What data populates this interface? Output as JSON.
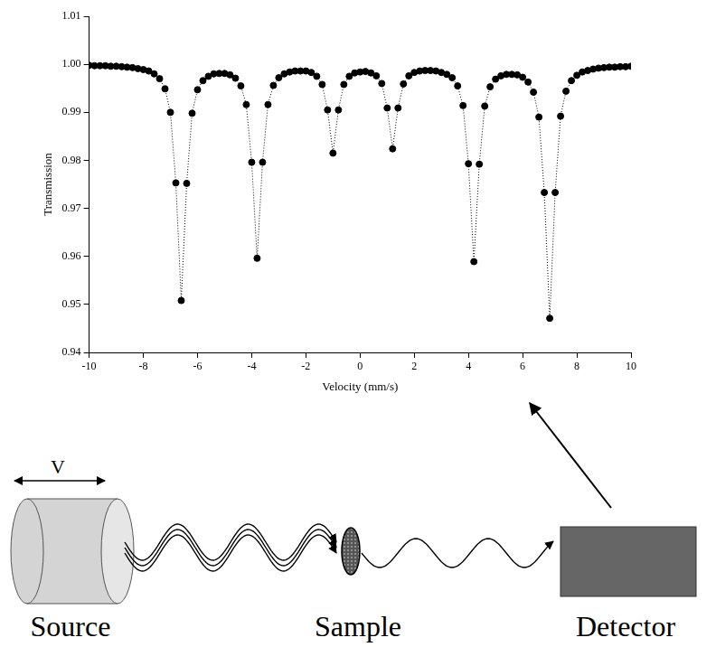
{
  "chart_data": {
    "type": "scatter",
    "xlabel": "Velocity (mm/s)",
    "ylabel": "Transmission",
    "x": [
      -10.0,
      -9.8,
      -9.6,
      -9.4,
      -9.2,
      -9.0,
      -8.8,
      -8.6,
      -8.4,
      -8.2,
      -8.0,
      -7.8,
      -7.6,
      -7.4,
      -7.2,
      -7.0,
      -6.8,
      -6.6,
      -6.4,
      -6.2,
      -6.0,
      -5.8,
      -5.6,
      -5.4,
      -5.2,
      -5.0,
      -4.8,
      -4.6,
      -4.4,
      -4.2,
      -4.0,
      -3.8,
      -3.6,
      -3.4,
      -3.2,
      -3.0,
      -2.8,
      -2.6,
      -2.4,
      -2.2,
      -2.0,
      -1.8,
      -1.6,
      -1.4,
      -1.2,
      -1.0,
      -0.8,
      -0.6,
      -0.4,
      -0.2,
      0.0,
      0.2,
      0.4,
      0.6,
      0.8,
      1.0,
      1.2,
      1.4,
      1.6,
      1.8,
      2.0,
      2.2,
      2.4,
      2.6,
      2.8,
      3.0,
      3.2,
      3.4,
      3.6,
      3.8,
      4.0,
      4.2,
      4.4,
      4.6,
      4.8,
      5.0,
      5.2,
      5.4,
      5.6,
      5.8,
      6.0,
      6.2,
      6.4,
      6.6,
      6.8,
      7.0,
      7.2,
      7.4,
      7.6,
      7.8,
      8.0,
      8.2,
      8.4,
      8.6,
      8.8,
      9.0,
      9.2,
      9.4,
      9.6,
      9.8,
      10.0
    ],
    "values": [
      0.9998,
      0.9997,
      0.9997,
      0.9997,
      0.9996,
      0.9996,
      0.9995,
      0.9994,
      0.9993,
      0.9991,
      0.9989,
      0.9986,
      0.998,
      0.997,
      0.9949,
      0.99,
      0.9753,
      0.9508,
      0.9752,
      0.9898,
      0.9947,
      0.9966,
      0.9975,
      0.998,
      0.9981,
      0.9981,
      0.9978,
      0.9971,
      0.9955,
      0.9916,
      0.9796,
      0.9596,
      0.9796,
      0.9916,
      0.9956,
      0.9972,
      0.998,
      0.9984,
      0.9986,
      0.9986,
      0.9986,
      0.9983,
      0.9975,
      0.9958,
      0.9905,
      0.9815,
      0.9905,
      0.9958,
      0.9975,
      0.9982,
      0.9984,
      0.9985,
      0.9982,
      0.9976,
      0.996,
      0.9909,
      0.9824,
      0.9909,
      0.9959,
      0.9976,
      0.9983,
      0.9986,
      0.9987,
      0.9987,
      0.9986,
      0.9983,
      0.9979,
      0.9972,
      0.9955,
      0.9914,
      0.9793,
      0.9589,
      0.9792,
      0.9913,
      0.9953,
      0.9969,
      0.9976,
      0.9979,
      0.9979,
      0.9978,
      0.9973,
      0.9963,
      0.9942,
      0.989,
      0.9733,
      0.9471,
      0.9733,
      0.9892,
      0.9944,
      0.9966,
      0.9977,
      0.9984,
      0.9987,
      0.999,
      0.9992,
      0.9993,
      0.9994,
      0.9994,
      0.9995,
      0.9995,
      0.9996
    ],
    "color": "#000000",
    "marker": "circle",
    "line_style": "dotted",
    "xlim": [
      -10,
      10
    ],
    "xticks": [
      -10,
      -8,
      -6,
      -4,
      -2,
      0,
      2,
      4,
      6,
      8,
      10
    ],
    "ylim": [
      0.94,
      1.01
    ],
    "yticks": [
      0.94,
      0.95,
      0.96,
      0.97,
      0.98,
      0.99,
      {
        "value": 1,
        "label": "1.00"
      },
      1.01
    ],
    "grid": false
  },
  "diagram": {
    "source": "Source",
    "sample": "Sample",
    "detector": "Detector",
    "motion_label": "V"
  }
}
